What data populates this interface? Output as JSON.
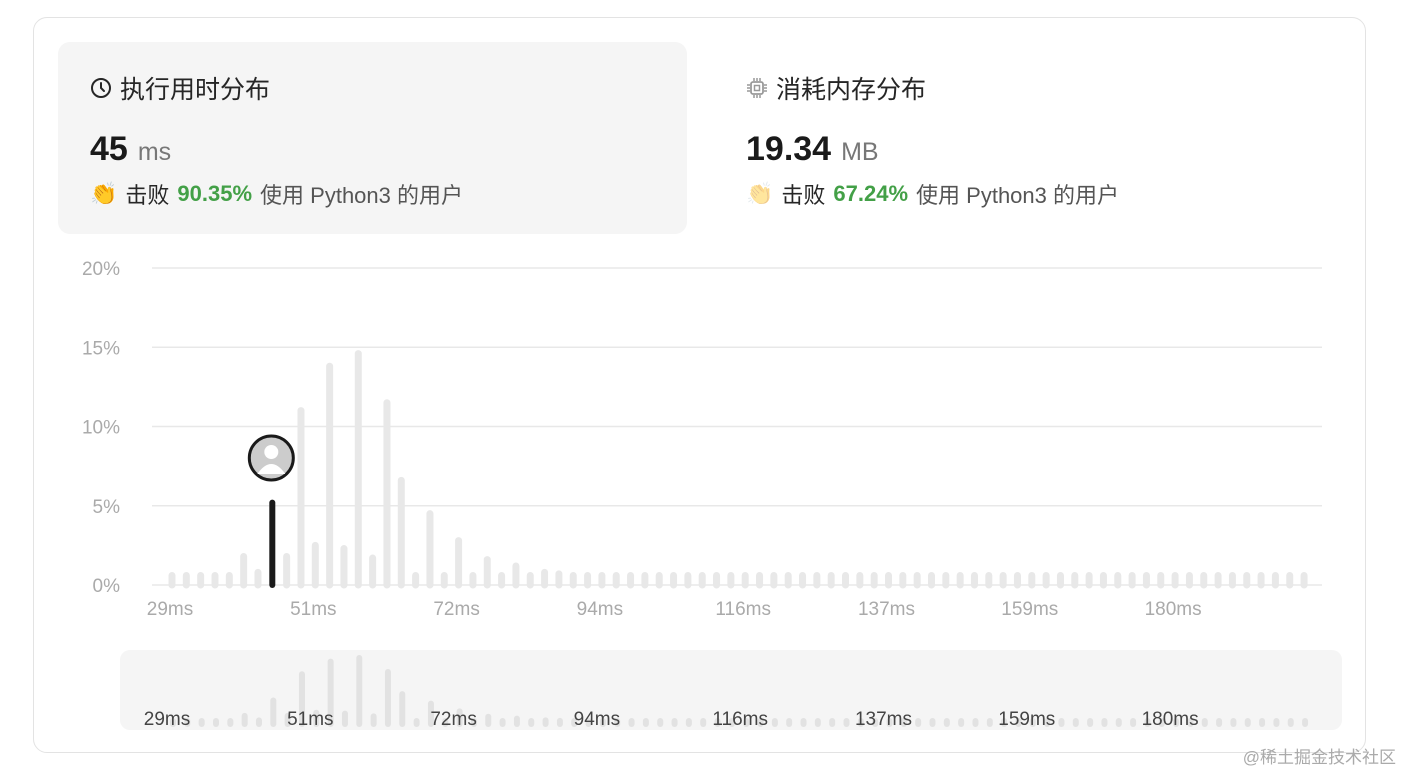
{
  "runtime": {
    "title": "执行用时分布",
    "icon": "clock-icon",
    "value": "45",
    "unit": "ms",
    "beats_label": "击败",
    "beats_pct": "90.35%",
    "beats_suffix": "使用 Python3 的用户"
  },
  "memory": {
    "title": "消耗内存分布",
    "icon": "chip-icon",
    "value": "19.34",
    "unit": "MB",
    "beats_label": "击败",
    "beats_pct": "67.24%",
    "beats_suffix": "使用 Python3 的用户"
  },
  "colors": {
    "accent_green": "#43a047",
    "bar": "#e8e8e8",
    "highlight_bar": "#1a1a1a"
  },
  "watermark": "@稀土掘金技术社区",
  "chart_data": {
    "type": "bar",
    "ylabel": "",
    "xlabel": "",
    "ylim": [
      0,
      20
    ],
    "y_ticks": [
      "0%",
      "5%",
      "10%",
      "15%",
      "20%"
    ],
    "y_tick_values": [
      0,
      5,
      10,
      15,
      20
    ],
    "x_tick_labels": [
      "29ms",
      "51ms",
      "72ms",
      "94ms",
      "116ms",
      "137ms",
      "159ms",
      "180ms"
    ],
    "x_tick_bin_index": [
      0,
      10,
      20,
      30,
      40,
      50,
      60,
      70
    ],
    "grid": true,
    "highlight_index": 7,
    "values": [
      0.6,
      0.6,
      0.6,
      0.6,
      0.6,
      1.8,
      0.8,
      5.2,
      1.8,
      11.0,
      2.5,
      13.8,
      2.3,
      14.6,
      1.7,
      11.5,
      6.6,
      0.6,
      4.5,
      0.6,
      2.8,
      0.6,
      1.6,
      0.6,
      1.2,
      0.6,
      0.8,
      0.7,
      0.6,
      0.6,
      0.6,
      0.6,
      0.6,
      0.6,
      0.6,
      0.6,
      0.6,
      0.6,
      0.6,
      0.6,
      0.6,
      0.6,
      0.6,
      0.6,
      0.6,
      0.6,
      0.6,
      0.6,
      0.6,
      0.6,
      0.6,
      0.6,
      0.6,
      0.6,
      0.6,
      0.6,
      0.6,
      0.6,
      0.6,
      0.6,
      0.6,
      0.6,
      0.6,
      0.6,
      0.6,
      0.6,
      0.6,
      0.6,
      0.6,
      0.6,
      0.6,
      0.6,
      0.6,
      0.6,
      0.6,
      0.6,
      0.6,
      0.6,
      0.6,
      0.6
    ]
  }
}
